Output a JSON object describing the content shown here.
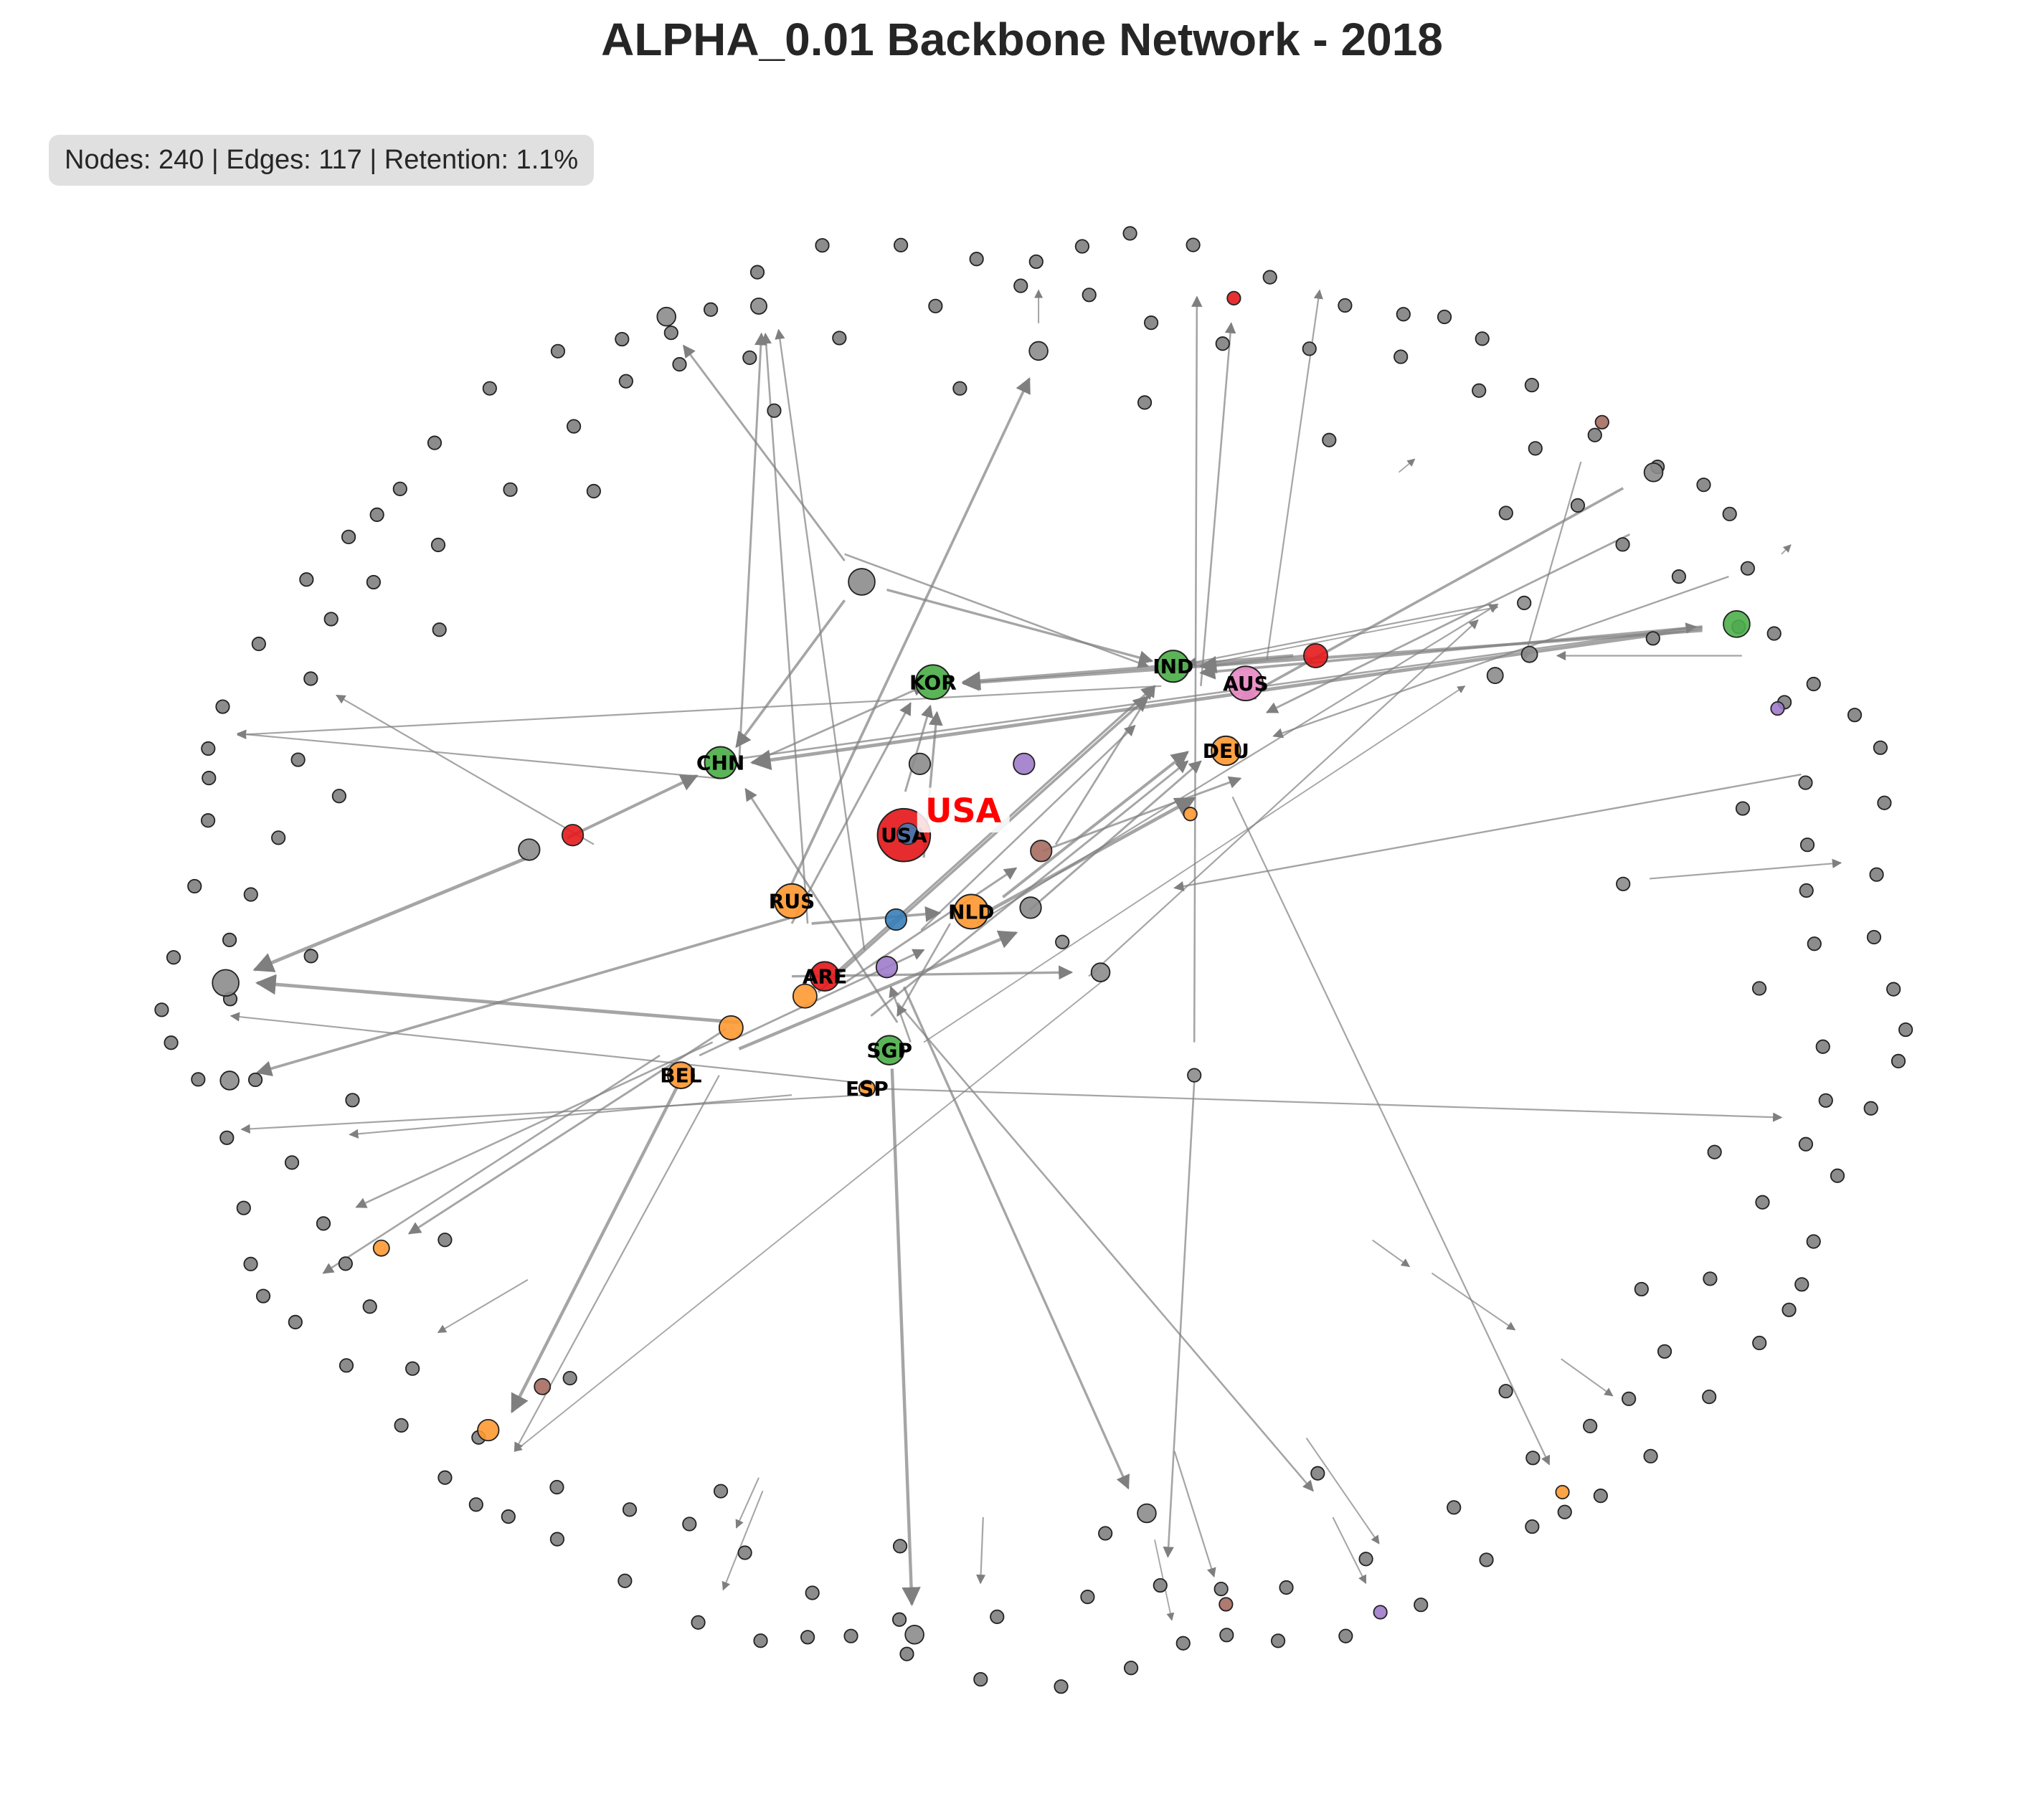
{
  "title": "ALPHA_0.01 Backbone Network - 2018",
  "stats": "Nodes: 240 | Edges: 117 | Retention: 1.1%",
  "highlight": "USA",
  "colors": {
    "green": "#4daf4a",
    "orange": "#ff9933",
    "red": "#e41a1c",
    "blue": "#377eb8",
    "purple": "#9e7bc9",
    "brown": "#a66b5f",
    "pink": "#e78ac3",
    "gray": "#8c8c8c",
    "edge": "#7f7f7f"
  },
  "labeled_nodes": [
    {
      "id": "USA",
      "label": "USA",
      "color": "red"
    },
    {
      "id": "KOR",
      "label": "KOR",
      "color": "green"
    },
    {
      "id": "IND",
      "label": "IND",
      "color": "green"
    },
    {
      "id": "AUS",
      "label": "AUS",
      "color": "pink"
    },
    {
      "id": "CHN",
      "label": "CHN",
      "color": "green"
    },
    {
      "id": "DEU",
      "label": "DEU",
      "color": "orange"
    },
    {
      "id": "RUS",
      "label": "RUS",
      "color": "orange"
    },
    {
      "id": "NLD",
      "label": "NLD",
      "color": "orange"
    },
    {
      "id": "ARE",
      "label": "ARE",
      "color": "red"
    },
    {
      "id": "SGP",
      "label": "SGP",
      "color": "green"
    },
    {
      "id": "BEL",
      "label": "BEL",
      "color": "orange"
    },
    {
      "id": "ESP",
      "label": "ESP",
      "color": "orange"
    }
  ]
}
